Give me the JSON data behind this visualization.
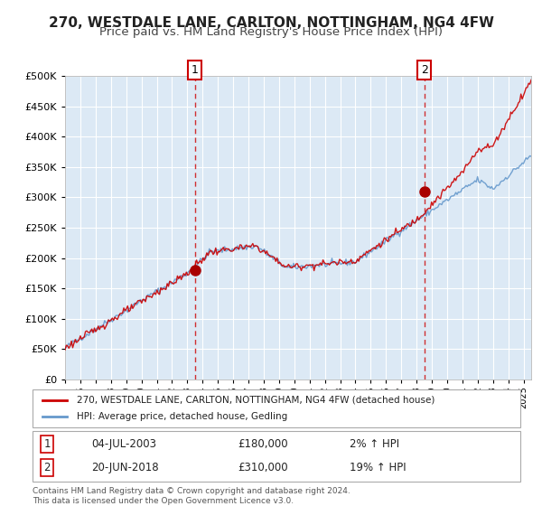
{
  "title": "270, WESTDALE LANE, CARLTON, NOTTINGHAM, NG4 4FW",
  "subtitle": "Price paid vs. HM Land Registry's House Price Index (HPI)",
  "ytick_values": [
    0,
    50000,
    100000,
    150000,
    200000,
    250000,
    300000,
    350000,
    400000,
    450000,
    500000
  ],
  "ylim": [
    0,
    500000
  ],
  "xlim_start": 1995.0,
  "xlim_end": 2025.5,
  "plot_bg_color": "#dce9f5",
  "grid_color": "#ffffff",
  "red_line_color": "#cc0000",
  "blue_line_color": "#6699cc",
  "marker_color": "#aa0000",
  "dashed_line_color": "#cc0000",
  "sale1_x": 2003.5,
  "sale1_y": 180000,
  "sale1_label": "1",
  "sale2_x": 2018.5,
  "sale2_y": 310000,
  "sale2_label": "2",
  "legend_line1": "270, WESTDALE LANE, CARLTON, NOTTINGHAM, NG4 4FW (detached house)",
  "legend_line2": "HPI: Average price, detached house, Gedling",
  "table_row1": [
    "1",
    "04-JUL-2003",
    "£180,000",
    "2% ↑ HPI"
  ],
  "table_row2": [
    "2",
    "20-JUN-2018",
    "£310,000",
    "19% ↑ HPI"
  ],
  "footnote": "Contains HM Land Registry data © Crown copyright and database right 2024.\nThis data is licensed under the Open Government Licence v3.0.",
  "title_fontsize": 11,
  "subtitle_fontsize": 9.5
}
